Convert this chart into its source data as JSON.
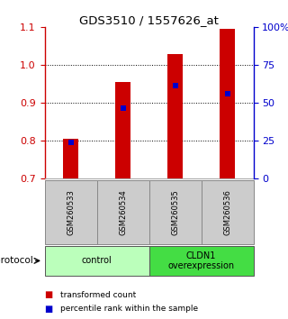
{
  "title": "GDS3510 / 1557626_at",
  "categories": [
    "GSM260533",
    "GSM260534",
    "GSM260535",
    "GSM260536"
  ],
  "bar_bottom": 0.7,
  "bar_tops": [
    0.805,
    0.955,
    1.03,
    1.095
  ],
  "percentile_ranks": [
    0.795,
    0.885,
    0.945,
    0.925
  ],
  "ylim_left": [
    0.7,
    1.1
  ],
  "ylim_right": [
    0,
    100
  ],
  "yticks_left": [
    0.7,
    0.8,
    0.9,
    1.0,
    1.1
  ],
  "yticks_right": [
    0,
    25,
    50,
    75,
    100
  ],
  "ytick_labels_right": [
    "0",
    "25",
    "50",
    "75",
    "100%"
  ],
  "bar_color": "#cc0000",
  "dot_color": "#0000cc",
  "protocol_groups": [
    {
      "label": "control",
      "samples": [
        0,
        1
      ],
      "color": "#bbffbb"
    },
    {
      "label": "CLDN1\noverexpression",
      "samples": [
        2,
        3
      ],
      "color": "#44dd44"
    }
  ],
  "legend_items": [
    {
      "color": "#cc0000",
      "label": "transformed count"
    },
    {
      "color": "#0000cc",
      "label": "percentile rank within the sample"
    }
  ],
  "protocol_label": "protocol",
  "sample_box_color": "#cccccc",
  "background_color": "#ffffff"
}
